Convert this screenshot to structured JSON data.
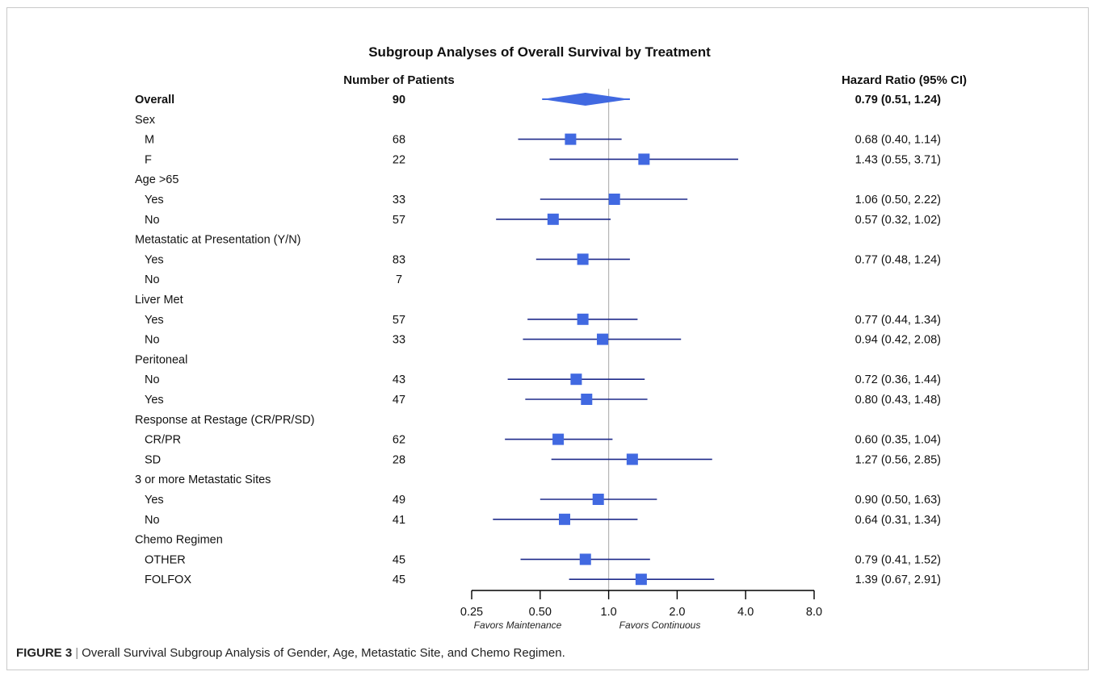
{
  "chart_data": {
    "type": "forest",
    "title": "Subgroup Analyses of Overall Survival by Treatment",
    "columns": {
      "patients_header": "Number of Patients",
      "hr_header": "Hazard Ratio (95% CI)"
    },
    "x_scale": "log2",
    "xlim": [
      0.25,
      8.0
    ],
    "reference_line": 1.0,
    "x_ticks": [
      "0.25",
      "0.50",
      "1.0",
      "2.0",
      "4.0",
      "8.0"
    ],
    "x_tick_values": [
      0.25,
      0.5,
      1.0,
      2.0,
      4.0,
      8.0
    ],
    "favors_left": "Favors Maintenance",
    "favors_right": "Favors Continuous",
    "rows": [
      {
        "label": "Overall",
        "n": "90",
        "hr": 0.79,
        "lo": 0.51,
        "hi": 1.24,
        "text": "0.79 (0.51, 1.24)",
        "kind": "overall"
      },
      {
        "label": "Sex",
        "kind": "group"
      },
      {
        "label": "M",
        "n": "68",
        "hr": 0.68,
        "lo": 0.4,
        "hi": 1.14,
        "text": "0.68 (0.40, 1.14)",
        "kind": "sub"
      },
      {
        "label": "F",
        "n": "22",
        "hr": 1.43,
        "lo": 0.55,
        "hi": 3.71,
        "text": "1.43 (0.55, 3.71)",
        "kind": "sub"
      },
      {
        "label": "Age >65",
        "kind": "group"
      },
      {
        "label": "Yes",
        "n": "33",
        "hr": 1.06,
        "lo": 0.5,
        "hi": 2.22,
        "text": "1.06 (0.50, 2.22)",
        "kind": "sub"
      },
      {
        "label": "No",
        "n": "57",
        "hr": 0.57,
        "lo": 0.32,
        "hi": 1.02,
        "text": "0.57 (0.32, 1.02)",
        "kind": "sub"
      },
      {
        "label": "Metastatic at Presentation (Y/N)",
        "kind": "group"
      },
      {
        "label": "Yes",
        "n": "83",
        "hr": 0.77,
        "lo": 0.48,
        "hi": 1.24,
        "text": "0.77 (0.48, 1.24)",
        "kind": "sub"
      },
      {
        "label": "No",
        "n": "7",
        "kind": "sub"
      },
      {
        "label": "Liver Met",
        "kind": "group"
      },
      {
        "label": "Yes",
        "n": "57",
        "hr": 0.77,
        "lo": 0.44,
        "hi": 1.34,
        "text": "0.77 (0.44, 1.34)",
        "kind": "sub"
      },
      {
        "label": "No",
        "n": "33",
        "hr": 0.94,
        "lo": 0.42,
        "hi": 2.08,
        "text": "0.94 (0.42, 2.08)",
        "kind": "sub"
      },
      {
        "label": "Peritoneal",
        "kind": "group"
      },
      {
        "label": "No",
        "n": "43",
        "hr": 0.72,
        "lo": 0.36,
        "hi": 1.44,
        "text": "0.72 (0.36, 1.44)",
        "kind": "sub"
      },
      {
        "label": "Yes",
        "n": "47",
        "hr": 0.8,
        "lo": 0.43,
        "hi": 1.48,
        "text": "0.80 (0.43, 1.48)",
        "kind": "sub"
      },
      {
        "label": "Response at Restage (CR/PR/SD)",
        "kind": "group"
      },
      {
        "label": "CR/PR",
        "n": "62",
        "hr": 0.6,
        "lo": 0.35,
        "hi": 1.04,
        "text": "0.60 (0.35, 1.04)",
        "kind": "sub"
      },
      {
        "label": "SD",
        "n": "28",
        "hr": 1.27,
        "lo": 0.56,
        "hi": 2.85,
        "text": "1.27 (0.56, 2.85)",
        "kind": "sub"
      },
      {
        "label": "3 or more Metastatic Sites",
        "kind": "group"
      },
      {
        "label": "Yes",
        "n": "49",
        "hr": 0.9,
        "lo": 0.5,
        "hi": 1.63,
        "text": "0.90 (0.50, 1.63)",
        "kind": "sub"
      },
      {
        "label": "No",
        "n": "41",
        "hr": 0.64,
        "lo": 0.31,
        "hi": 1.34,
        "text": "0.64 (0.31, 1.34)",
        "kind": "sub"
      },
      {
        "label": "Chemo Regimen",
        "kind": "group"
      },
      {
        "label": "OTHER",
        "n": "45",
        "hr": 0.79,
        "lo": 0.41,
        "hi": 1.52,
        "text": "0.79 (0.41, 1.52)",
        "kind": "sub"
      },
      {
        "label": "FOLFOX",
        "n": "45",
        "hr": 1.39,
        "lo": 0.67,
        "hi": 2.91,
        "text": "1.39 (0.67, 2.91)",
        "kind": "sub"
      }
    ]
  },
  "caption": {
    "label": "FIGURE 3",
    "separator": "|",
    "text": "Overall Survival Subgroup Analysis of Gender, Age, Metastatic Site, and Chemo Regimen."
  },
  "colors": {
    "marker": "#4169e1",
    "ci_line": "#1f2a8a",
    "reference_line": "#b5b5b5",
    "axis": "#000000"
  }
}
